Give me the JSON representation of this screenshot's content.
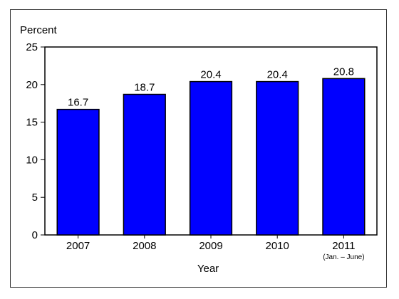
{
  "chart_data": {
    "type": "bar",
    "title": "",
    "ylabel": "Percent",
    "xlabel": "Year",
    "ylim": [
      0,
      25
    ],
    "yticks": [
      0,
      5,
      10,
      15,
      20,
      25
    ],
    "categories": [
      "2007",
      "2008",
      "2009",
      "2010",
      "2011"
    ],
    "category_sublabels": [
      "",
      "",
      "",
      "",
      "(Jan. – June)"
    ],
    "values": [
      16.7,
      18.7,
      20.4,
      20.4,
      20.8
    ],
    "value_labels": [
      "16.7",
      "18.7",
      "20.4",
      "20.4",
      "20.8"
    ],
    "bar_color": "#0000ff",
    "grid": false,
    "legend": "none"
  }
}
